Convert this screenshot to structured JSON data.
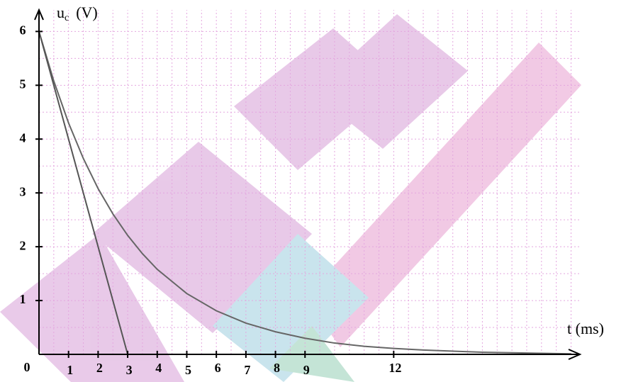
{
  "chart_data": {
    "type": "line",
    "x_label": "t (ms)",
    "y_label": "u",
    "y_label_sub": "c",
    "y_label_unit": "(V)",
    "xlim": [
      0,
      18.3
    ],
    "ylim": [
      0,
      6.4
    ],
    "xticks": [
      0,
      1,
      2,
      3,
      4,
      5,
      6,
      7,
      8,
      9,
      12
    ],
    "yticks": [
      1,
      2,
      3,
      4,
      5,
      6
    ],
    "grid": true,
    "grid_step": [
      0.5,
      0.5
    ],
    "grid_color": "#e4a6df",
    "series": [
      {
        "color": "#666666",
        "x": [
          0,
          0.5,
          1,
          1.5,
          2,
          2.5,
          3,
          3.5,
          4,
          5,
          6,
          7,
          8,
          9,
          10,
          11,
          12,
          13,
          14,
          15,
          16,
          17,
          18
        ],
        "values": [
          6,
          5.08,
          4.3,
          3.64,
          3.08,
          2.61,
          2.21,
          1.87,
          1.58,
          1.13,
          0.81,
          0.58,
          0.42,
          0.3,
          0.21,
          0.15,
          0.11,
          0.08,
          0.06,
          0.04,
          0.03,
          0.02,
          0.01
        ]
      },
      {
        "color": "#555555",
        "x": [
          0,
          3
        ],
        "values": [
          6,
          0
        ]
      }
    ]
  }
}
